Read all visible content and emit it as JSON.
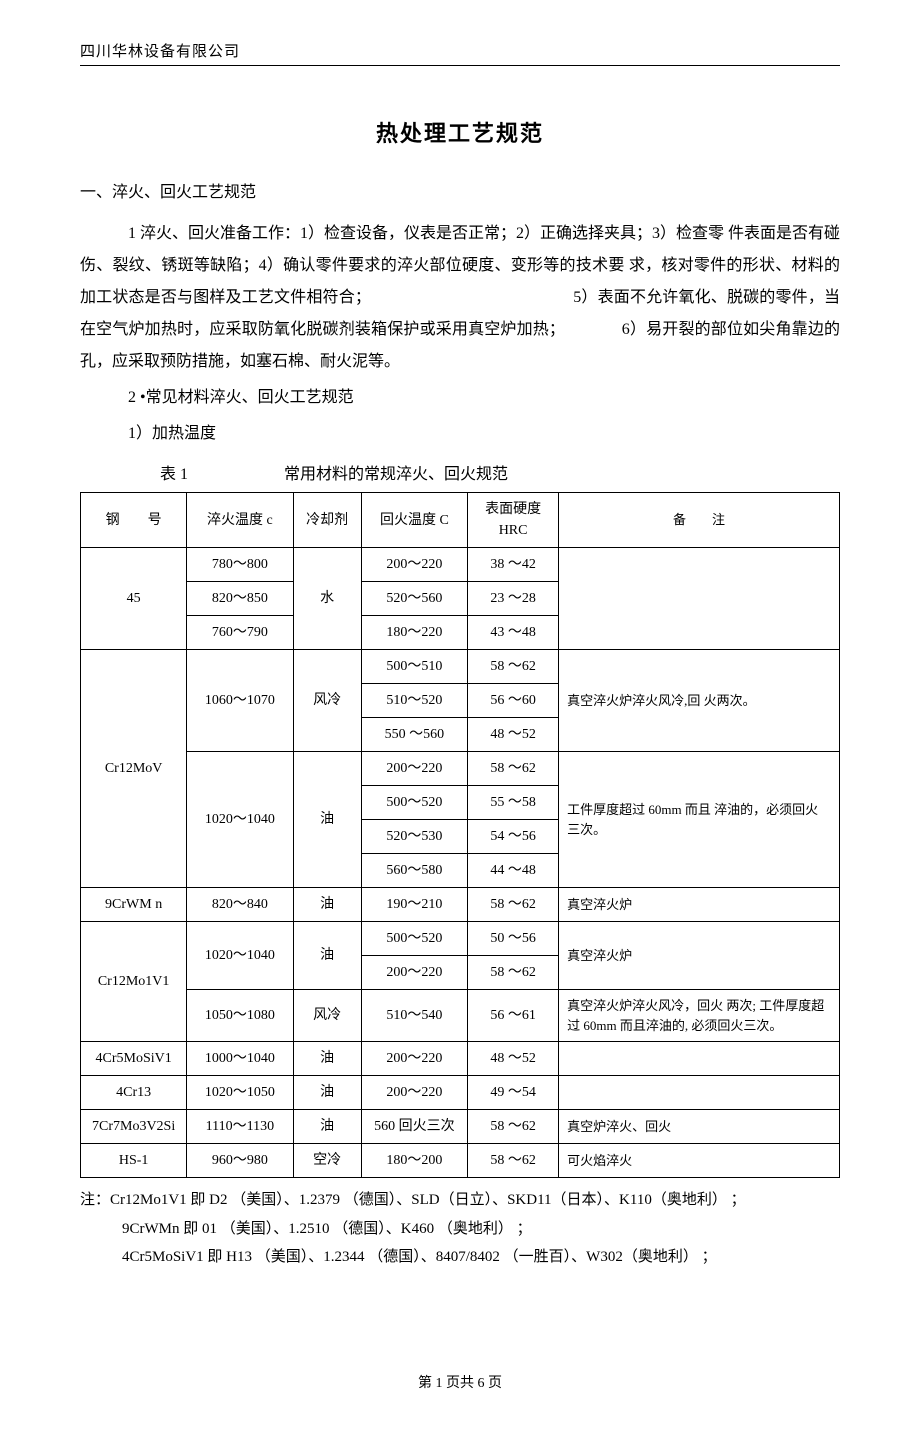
{
  "header": {
    "company": "四川华林设备有限公司"
  },
  "title": "热处理工艺规范",
  "section1": {
    "heading": "一、淬火、回火工艺规范",
    "para": "1 淬火、回火准备工作：1）检查设备，仪表是否正常；2）正确选择夹具；3）检查零 件表面是否有碰伤、裂纹、锈斑等缺陷；4）确认零件要求的淬火部位硬度、变形等的技术要 求，核对零件的形状、材料的加工状态是否与图样及工艺文件相符合；　　　　　　　　　　　　　5）表面不允许氧化、脱碳的零件，当在空气炉加热时，应采取防氧化脱碳剂装箱保护或采用真空炉加热；　　　　6）易开裂的部位如尖角靠边的孔，应采取预防措施，如塞石棉、耐火泥等。",
    "item2": "2 •常见材料淬火、回火工艺规范",
    "item2_1": "1）加热温度",
    "table_caption": "表 1　　　　　　常用材料的常规淬火、回火规范"
  },
  "table": {
    "headers": {
      "steel": "钢　　号",
      "quench_temp": "淬火温度 c",
      "coolant": "冷却剂",
      "temper_temp": "回火温度 C",
      "hrc_l1": "表面硬度",
      "hrc_l2": "HRC",
      "note": "备　　注"
    },
    "g1": {
      "steel": "45",
      "coolant": "水",
      "r1": {
        "q": "780〜800",
        "t": "200〜220",
        "h": "38 〜42"
      },
      "r2": {
        "q": "820〜850",
        "t": "520〜560",
        "h": "23 〜28"
      },
      "r3": {
        "q": "760〜790",
        "t": "180〜220",
        "h": "43 〜48"
      }
    },
    "g2": {
      "steel": "Cr12MoV",
      "b1_q": "1060〜1070",
      "b1_cool": "风冷",
      "b1_note": "真空淬火炉淬火风冷,回 火两次。",
      "b1r1": {
        "t": "500〜510",
        "h": "58 〜62"
      },
      "b1r2": {
        "t": "510〜520",
        "h": "56 〜60"
      },
      "b1r3": {
        "t": "550 〜560",
        "h": "48 〜52"
      },
      "b2_q": "1020〜1040",
      "b2_cool": "油",
      "b2_note": "工件厚度超过 60mm 而且 淬油的，必须回火三次。",
      "b2r1": {
        "t": "200〜220",
        "h": "58 〜62"
      },
      "b2r2": {
        "t": "500〜520",
        "h": "55 〜58"
      },
      "b2r3": {
        "t": "520〜530",
        "h": "54 〜56"
      },
      "b2r4": {
        "t": "560〜580",
        "h": "44 〜48"
      }
    },
    "g3": {
      "steel": "9CrWM n",
      "q": "820〜840",
      "cool": "油",
      "t": "190〜210",
      "h": "58 〜62",
      "note": "真空淬火炉"
    },
    "g4": {
      "steel": "Cr12Mo1V1",
      "b1_q": "1020〜1040",
      "b1_cool": "油",
      "b1_note": "真空淬火炉",
      "b1r1": {
        "t": "500〜520",
        "h": "50 〜56"
      },
      "b1r2": {
        "t": "200〜220",
        "h": "58 〜62"
      },
      "b2_q": "1050〜1080",
      "b2_cool": "风冷",
      "b2_t": "510〜540",
      "b2_h": "56 〜61",
      "b2_note": "真空淬火炉淬火风冷，回火 两次; 工件厚度超过 60mm 而且淬油的, 必须回火三次。"
    },
    "g5": {
      "steel": "4Cr5MoSiV1",
      "q": "1000〜1040",
      "cool": "油",
      "t": "200〜220",
      "h": "48 〜52",
      "note": ""
    },
    "g6": {
      "steel": "4Cr13",
      "q": "1020〜1050",
      "cool": "油",
      "t": "200〜220",
      "h": "49 〜54",
      "note": ""
    },
    "g7": {
      "steel": "7Cr7Mo3V2Si",
      "q": "1110〜1130",
      "cool": "油",
      "t": "560 回火三次",
      "h": "58 〜62",
      "note": "真空炉淬火、回火"
    },
    "g8": {
      "steel": "HS-1",
      "q": "960〜980",
      "cool": "空冷",
      "t": "180〜200",
      "h": "58 〜62",
      "note": "可火焰淬火"
    }
  },
  "footnotes": {
    "l1": "注：Cr12Mo1V1 即 D2 （美国）、1.2379 （德国）、SLD（日立）、SKD11（日本）、K110（奥地利） ；",
    "l2": "9CrWMn 即 01 （美国）、1.2510 （德国）、K460 （奥地利） ；",
    "l3": "4Cr5MoSiV1 即 H13 （美国）、1.2344 （德国）、8407/8402 （一胜百）、W302（奥地利） ；"
  },
  "footer": "第 1 页共 6 页"
}
